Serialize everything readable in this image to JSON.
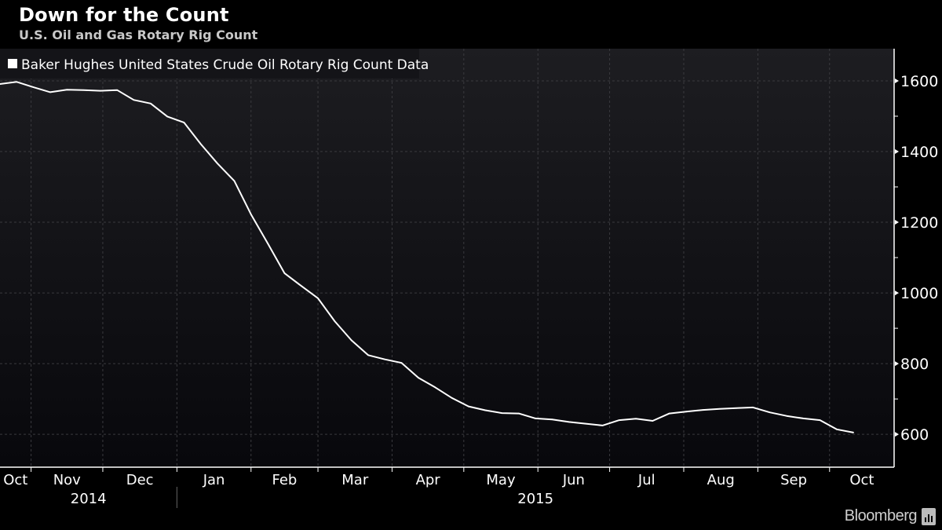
{
  "header": {
    "title": "Down for the Count",
    "subtitle": "U.S. Oil and Gas Rotary Rig Count"
  },
  "branding": {
    "logo": "Bloomberg"
  },
  "colors": {
    "background": "#000000",
    "plot_top": "#1d1d21",
    "plot_bottom": "#08080c",
    "line": "#ffffff",
    "grid": "#3a3a3e"
  },
  "chart_data": {
    "type": "line",
    "title": "Down for the Count",
    "subtitle": "U.S. Oil and Gas Rotary Rig Count",
    "xlabel": "",
    "ylabel": "",
    "legend": {
      "position": "top-left",
      "entries": [
        "Baker Hughes United States Crude Oil Rotary Rig Count Data"
      ]
    },
    "xlim": [
      "2014-10-19",
      "2015-10-28"
    ],
    "ylim": [
      507,
      1691
    ],
    "yticks": [
      600,
      800,
      1000,
      1200,
      1400,
      1600
    ],
    "ytick_labels": [
      "600",
      "800",
      "1000",
      "1200",
      "1400",
      "1600"
    ],
    "grid": true,
    "month_ticks": [
      "2014-11-01",
      "2014-12-01",
      "2015-01-01",
      "2015-02-01",
      "2015-03-01",
      "2015-04-01",
      "2015-05-01",
      "2015-06-01",
      "2015-07-01",
      "2015-08-01",
      "2015-09-01",
      "2015-10-01"
    ],
    "month_labels": [
      {
        "label": "Oct",
        "start": "2014-10-19",
        "end": "2014-11-01"
      },
      {
        "label": "Nov",
        "start": "2014-11-01",
        "end": "2014-12-01"
      },
      {
        "label": "Dec",
        "start": "2014-12-01",
        "end": "2015-01-01"
      },
      {
        "label": "Jan",
        "start": "2015-01-01",
        "end": "2015-02-01"
      },
      {
        "label": "Feb",
        "start": "2015-02-01",
        "end": "2015-03-01"
      },
      {
        "label": "Mar",
        "start": "2015-03-01",
        "end": "2015-04-01"
      },
      {
        "label": "Apr",
        "start": "2015-04-01",
        "end": "2015-05-01"
      },
      {
        "label": "May",
        "start": "2015-05-01",
        "end": "2015-06-01"
      },
      {
        "label": "Jun",
        "start": "2015-06-01",
        "end": "2015-07-01"
      },
      {
        "label": "Jul",
        "start": "2015-07-01",
        "end": "2015-08-01"
      },
      {
        "label": "Aug",
        "start": "2015-08-01",
        "end": "2015-09-01"
      },
      {
        "label": "Sep",
        "start": "2015-09-01",
        "end": "2015-10-01"
      },
      {
        "label": "Oct",
        "start": "2015-10-01",
        "end": "2015-10-28"
      }
    ],
    "year_labels": [
      {
        "label": "2014",
        "start": "2014-10-19",
        "end": "2015-01-01"
      },
      {
        "label": "2015",
        "start": "2015-01-01",
        "end": "2015-10-28"
      }
    ],
    "series": [
      {
        "name": "Baker Hughes United States Crude Oil Rotary Rig Count Data",
        "x": [
          "2014-10-19",
          "2014-10-26",
          "2014-11-02",
          "2014-11-09",
          "2014-11-16",
          "2014-11-23",
          "2014-11-30",
          "2014-12-07",
          "2014-12-14",
          "2014-12-21",
          "2014-12-28",
          "2015-01-04",
          "2015-01-11",
          "2015-01-18",
          "2015-01-25",
          "2015-02-01",
          "2015-02-08",
          "2015-02-15",
          "2015-02-22",
          "2015-03-01",
          "2015-03-08",
          "2015-03-15",
          "2015-03-22",
          "2015-03-29",
          "2015-04-05",
          "2015-04-12",
          "2015-04-19",
          "2015-04-26",
          "2015-05-03",
          "2015-05-10",
          "2015-05-17",
          "2015-05-24",
          "2015-05-31",
          "2015-06-07",
          "2015-06-14",
          "2015-06-21",
          "2015-06-28",
          "2015-07-05",
          "2015-07-12",
          "2015-07-19",
          "2015-07-26",
          "2015-08-02",
          "2015-08-09",
          "2015-08-16",
          "2015-08-23",
          "2015-08-30",
          "2015-09-06",
          "2015-09-13",
          "2015-09-20",
          "2015-09-27",
          "2015-10-04",
          "2015-10-11"
        ],
        "values": [
          1591,
          1597,
          1582,
          1568,
          1575,
          1574,
          1572,
          1574,
          1546,
          1536,
          1499,
          1482,
          1421,
          1366,
          1317,
          1222,
          1140,
          1056,
          1020,
          985,
          920,
          866,
          824,
          812,
          802,
          760,
          733,
          703,
          679,
          668,
          660,
          659,
          645,
          642,
          635,
          630,
          625,
          640,
          644,
          638,
          659,
          664,
          669,
          672,
          674,
          676,
          662,
          652,
          645,
          640,
          614,
          605
        ]
      }
    ]
  }
}
